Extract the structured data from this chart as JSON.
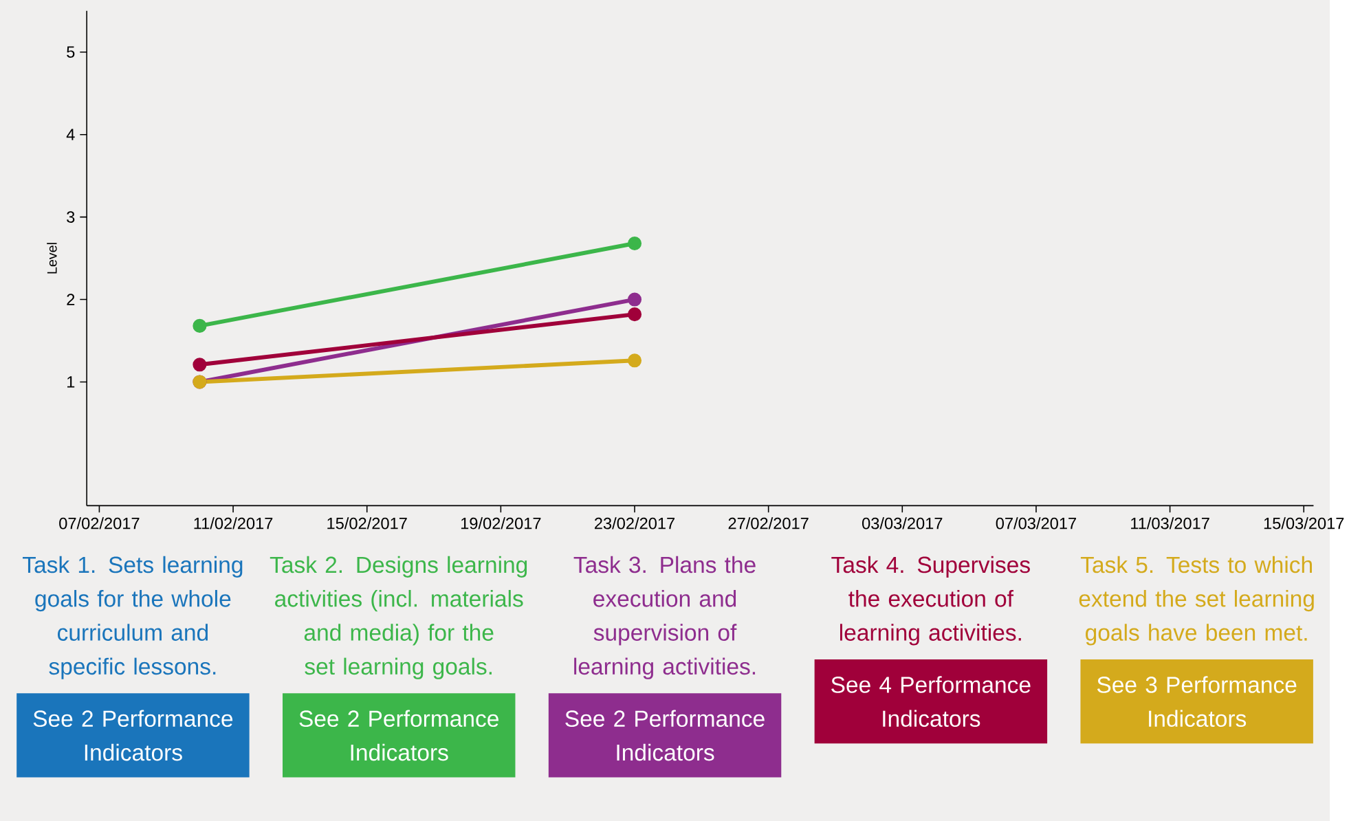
{
  "chart_data": {
    "type": "line",
    "ylabel": "Level",
    "x": [
      "2017-02-10",
      "2017-02-23"
    ],
    "xlim": [
      "2017-02-06T15:00",
      "2017-03-15T07:00"
    ],
    "xticks": [
      {
        "value": "2017-02-07",
        "label": "07/02/2017"
      },
      {
        "value": "2017-02-11",
        "label": "11/02/2017"
      },
      {
        "value": "2017-02-15",
        "label": "15/02/2017"
      },
      {
        "value": "2017-02-19",
        "label": "19/02/2017"
      },
      {
        "value": "2017-02-23",
        "label": "23/02/2017"
      },
      {
        "value": "2017-02-27",
        "label": "27/02/2017"
      },
      {
        "value": "2017-03-03",
        "label": "03/03/2017"
      },
      {
        "value": "2017-03-07",
        "label": "07/03/2017"
      },
      {
        "value": "2017-03-11",
        "label": "11/03/2017"
      },
      {
        "value": "2017-03-15",
        "label": "15/03/2017"
      }
    ],
    "ylim": [
      -0.5,
      5.5
    ],
    "yticks": [
      1,
      2,
      3,
      4,
      5
    ],
    "series": [
      {
        "name": "Task 1. Sets learning goals for the whole curriculum and specific lessons.",
        "color": "#1a75bb",
        "values": [
          null,
          null
        ]
      },
      {
        "name": "Task 2. Designs learning activities (incl. materials and media) for the set learning goals.",
        "color": "#3cb64a",
        "values": [
          1.68,
          2.68
        ]
      },
      {
        "name": "Task 3. Plans the execution and supervision of learning activities.",
        "color": "#8e2d8e",
        "values": [
          1.0,
          2.0
        ]
      },
      {
        "name": "Task 4. Supervises the execution of learning activities.",
        "color": "#a0003a",
        "values": [
          1.21,
          1.82
        ]
      },
      {
        "name": "Task 5. Tests to which extend the set learning goals have been met.",
        "color": "#d4aa1c",
        "values": [
          1.0,
          1.26
        ]
      }
    ],
    "annotations": [
      "See 2 Performance Indicators",
      "See 2 Performance Indicators",
      "See 2 Performance Indicators",
      "See 4 Performance Indicators",
      "See 3 Performance Indicators"
    ],
    "marker": "circle",
    "line_style": "solid",
    "grid": false,
    "legend": "bottom"
  }
}
